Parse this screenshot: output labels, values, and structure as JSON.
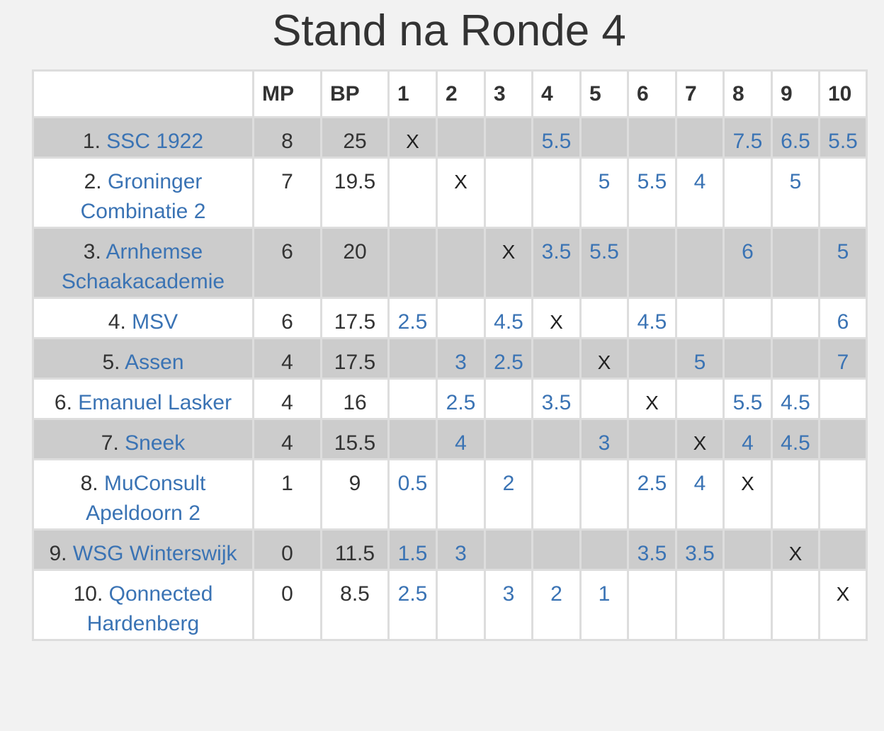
{
  "title": "Stand na Ronde 4",
  "header": [
    "",
    "MP",
    "BP",
    "1",
    "2",
    "3",
    "4",
    "5",
    "6",
    "7",
    "8",
    "9",
    "10"
  ],
  "colors": {
    "link": "#3a73b4",
    "stripe": "#cccccc",
    "border": "#dddddd"
  },
  "rows": [
    {
      "rank": "1.",
      "team": "SSC 1922",
      "mp": "8",
      "bp": "25",
      "scores": [
        "X",
        "",
        "",
        "5.5",
        "",
        "",
        "",
        "7.5",
        "6.5",
        "5.5"
      ]
    },
    {
      "rank": "2.",
      "team": "Groninger Combinatie 2",
      "mp": "7",
      "bp": "19.5",
      "scores": [
        "",
        "X",
        "",
        "",
        "5",
        "5.5",
        "4",
        "",
        "5",
        ""
      ]
    },
    {
      "rank": "3.",
      "team": "Arnhemse Schaakacademie",
      "mp": "6",
      "bp": "20",
      "scores": [
        "",
        "",
        "X",
        "3.5",
        "5.5",
        "",
        "",
        "6",
        "",
        "5"
      ]
    },
    {
      "rank": "4.",
      "team": "MSV",
      "mp": "6",
      "bp": "17.5",
      "scores": [
        "2.5",
        "",
        "4.5",
        "X",
        "",
        "4.5",
        "",
        "",
        "",
        "6"
      ]
    },
    {
      "rank": "5.",
      "team": "Assen",
      "mp": "4",
      "bp": "17.5",
      "scores": [
        "",
        "3",
        "2.5",
        "",
        "X",
        "",
        "5",
        "",
        "",
        "7"
      ]
    },
    {
      "rank": "6.",
      "team": "Emanuel Lasker",
      "mp": "4",
      "bp": "16",
      "scores": [
        "",
        "2.5",
        "",
        "3.5",
        "",
        "X",
        "",
        "5.5",
        "4.5",
        ""
      ]
    },
    {
      "rank": "7.",
      "team": "Sneek",
      "mp": "4",
      "bp": "15.5",
      "scores": [
        "",
        "4",
        "",
        "",
        "3",
        "",
        "X",
        "4",
        "4.5",
        ""
      ]
    },
    {
      "rank": "8.",
      "team": "MuConsult Apeldoorn 2",
      "mp": "1",
      "bp": "9",
      "scores": [
        "0.5",
        "",
        "2",
        "",
        "",
        "2.5",
        "4",
        "X",
        "",
        ""
      ]
    },
    {
      "rank": "9.",
      "team": "WSG Winterswijk",
      "mp": "0",
      "bp": "11.5",
      "scores": [
        "1.5",
        "3",
        "",
        "",
        "",
        "3.5",
        "3.5",
        "",
        "X",
        ""
      ]
    },
    {
      "rank": "10.",
      "team": "Qonnected Hardenberg",
      "mp": "0",
      "bp": "8.5",
      "scores": [
        "2.5",
        "",
        "3",
        "2",
        "1",
        "",
        "",
        "",
        "",
        "X"
      ]
    }
  ]
}
